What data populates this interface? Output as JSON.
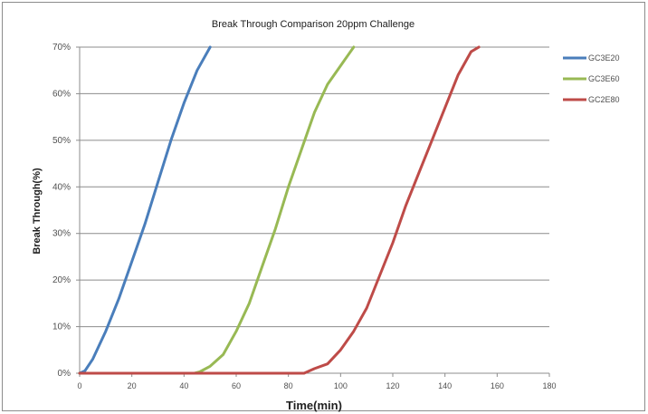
{
  "chart_data": {
    "type": "line",
    "title": "Break Through Comparison 20ppm Challenge",
    "xlabel": "Time(min)",
    "ylabel": "Break Through(%)",
    "xlim": [
      0,
      180
    ],
    "ylim": [
      0,
      70
    ],
    "x_ticks": [
      "0",
      "20",
      "40",
      "60",
      "80",
      "100",
      "120",
      "140",
      "160",
      "180"
    ],
    "y_ticks": [
      "0%",
      "10%",
      "20%",
      "30%",
      "40%",
      "50%",
      "60%",
      "70%"
    ],
    "grid": "horizontal",
    "legend_position": "right",
    "series": [
      {
        "name": "GC3E20",
        "color": "#4a7ebb",
        "points": [
          [
            0,
            0
          ],
          [
            2,
            0.5
          ],
          [
            5,
            3
          ],
          [
            10,
            9
          ],
          [
            15,
            16
          ],
          [
            20,
            24
          ],
          [
            25,
            32
          ],
          [
            30,
            41
          ],
          [
            35,
            50
          ],
          [
            40,
            58
          ],
          [
            45,
            65
          ],
          [
            50,
            70
          ]
        ]
      },
      {
        "name": "GC3E60",
        "color": "#98b954",
        "points": [
          [
            0,
            0
          ],
          [
            44,
            0
          ],
          [
            46,
            0.3
          ],
          [
            50,
            1.5
          ],
          [
            55,
            4
          ],
          [
            60,
            9
          ],
          [
            65,
            15
          ],
          [
            70,
            23
          ],
          [
            75,
            31
          ],
          [
            80,
            40
          ],
          [
            85,
            48
          ],
          [
            90,
            56
          ],
          [
            95,
            62
          ],
          [
            100,
            66
          ],
          [
            105,
            70
          ]
        ]
      },
      {
        "name": "GC2E80",
        "color": "#be4b48",
        "points": [
          [
            0,
            0
          ],
          [
            86,
            0
          ],
          [
            90,
            1
          ],
          [
            95,
            2
          ],
          [
            100,
            5
          ],
          [
            105,
            9
          ],
          [
            110,
            14
          ],
          [
            115,
            21
          ],
          [
            120,
            28
          ],
          [
            125,
            36
          ],
          [
            130,
            43
          ],
          [
            135,
            50
          ],
          [
            140,
            57
          ],
          [
            145,
            64
          ],
          [
            150,
            69
          ],
          [
            153,
            70
          ]
        ]
      }
    ]
  }
}
